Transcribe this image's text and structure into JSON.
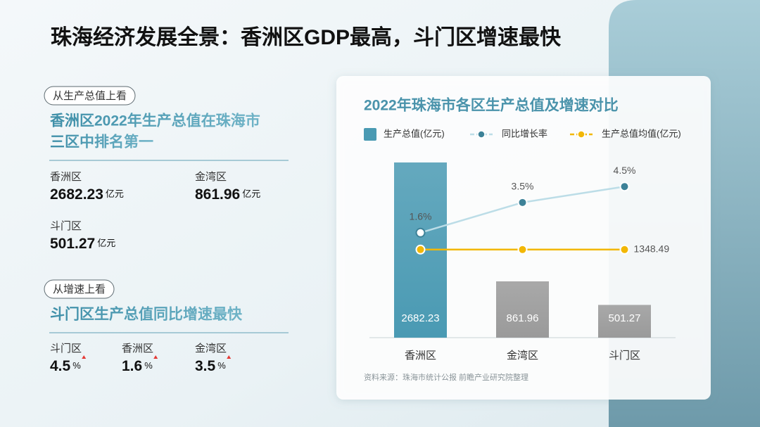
{
  "title": "珠海经济发展全景：香洲区GDP最高，斗门区增速最快",
  "panel": {
    "sections": [
      {
        "tag": "从生产总值上看",
        "heading": [
          "香洲区2022年生产总值在珠海市",
          "三区中排名第一"
        ],
        "stats": [
          {
            "label": "香洲区",
            "value": 2682.23,
            "unit": "亿元"
          },
          {
            "label": "金湾区",
            "value": 861.96,
            "unit": "亿元"
          },
          {
            "label": "斗门区",
            "value": 501.27,
            "unit": "亿元"
          }
        ]
      },
      {
        "tag": "从增速上看",
        "heading": [
          "斗门区生产总值同比增速最快"
        ],
        "stats": [
          {
            "label": "斗门区",
            "value": 4.5,
            "unit": "%"
          },
          {
            "label": "香洲区",
            "value": 1.6,
            "unit": "%"
          },
          {
            "label": "金湾区",
            "value": 3.5,
            "unit": "%"
          }
        ]
      }
    ]
  },
  "chart_data": {
    "type": "bar",
    "title": "2022年珠海市各区生产总值及增速对比",
    "categories": [
      "香洲区",
      "金湾区",
      "斗门区"
    ],
    "series": [
      {
        "name": "生产总值(亿元)",
        "type": "bar",
        "color": "#4a9ab3",
        "colors": [
          "#4a9ab3",
          "#9a9a9a",
          "#9a9a9a"
        ],
        "values": [
          2682.23,
          861.96,
          501.27
        ]
      },
      {
        "name": "同比增长率",
        "type": "line",
        "axis": "y2",
        "color": "#bcdde7",
        "marker": "#3d8298",
        "values": [
          1.6,
          3.5,
          4.5
        ],
        "value_labels": [
          "1.6%",
          "3.5%",
          "4.5%"
        ]
      },
      {
        "name": "生产总值均值(亿元)",
        "type": "line",
        "color": "#f2b705",
        "marker": "#f2b705",
        "values": [
          1348.49,
          1348.49,
          1348.49
        ]
      }
    ],
    "ylim": [
      0,
      2800
    ],
    "y2lim": [
      -5,
      6.5
    ],
    "source": "资料来源：珠海市统计公报   前瞻产业研究院整理"
  }
}
